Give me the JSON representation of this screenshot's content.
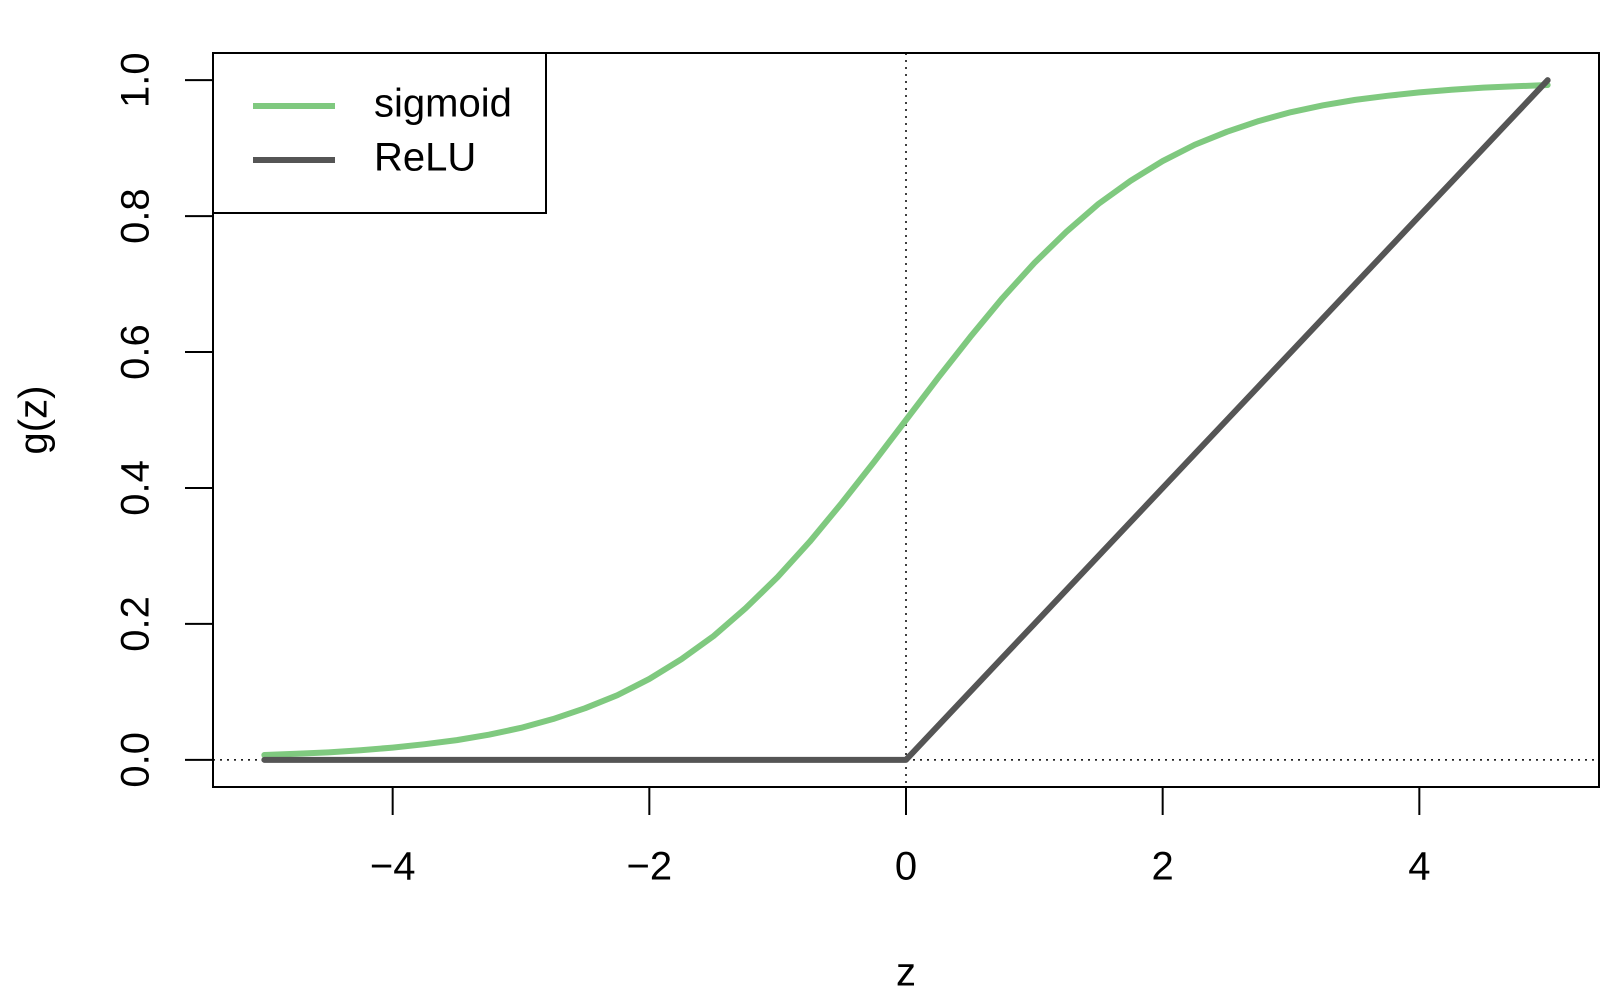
{
  "chart_data": {
    "type": "line",
    "xlabel": "z",
    "ylabel": "g(z)",
    "x": [
      -5,
      -4.75,
      -4.5,
      -4.25,
      -4,
      -3.75,
      -3.5,
      -3.25,
      -3,
      -2.75,
      -2.5,
      -2.25,
      -2,
      -1.75,
      -1.5,
      -1.25,
      -1,
      -0.75,
      -0.5,
      -0.25,
      0,
      0.25,
      0.5,
      0.75,
      1,
      1.25,
      1.5,
      1.75,
      2,
      2.25,
      2.5,
      2.75,
      3,
      3.25,
      3.5,
      3.75,
      4,
      4.25,
      4.5,
      4.75,
      5
    ],
    "series": [
      {
        "name": "sigmoid",
        "color": "#7fc97f",
        "values": [
          0.007,
          0.009,
          0.011,
          0.014,
          0.018,
          0.023,
          0.029,
          0.037,
          0.047,
          0.06,
          0.076,
          0.095,
          0.119,
          0.148,
          0.182,
          0.223,
          0.269,
          0.321,
          0.378,
          0.438,
          0.5,
          0.562,
          0.622,
          0.679,
          0.731,
          0.777,
          0.818,
          0.852,
          0.881,
          0.905,
          0.924,
          0.94,
          0.953,
          0.963,
          0.971,
          0.977,
          0.982,
          0.986,
          0.989,
          0.991,
          0.993
        ]
      },
      {
        "name": "ReLU",
        "color": "#555555",
        "values": [
          0,
          0,
          0,
          0,
          0,
          0,
          0,
          0,
          0,
          0,
          0,
          0,
          0,
          0,
          0,
          0,
          0,
          0,
          0,
          0,
          0,
          0.05,
          0.1,
          0.15,
          0.2,
          0.25,
          0.3,
          0.35,
          0.4,
          0.45,
          0.5,
          0.55,
          0.6,
          0.65,
          0.7,
          0.75,
          0.8,
          0.85,
          0.9,
          0.95,
          1.0
        ]
      }
    ],
    "xlim": [
      -5.4,
      5.4
    ],
    "ylim": [
      -0.04,
      1.04
    ],
    "xticks": [
      {
        "value": -4,
        "label": "−4"
      },
      {
        "value": -2,
        "label": "−2"
      },
      0,
      2,
      4
    ],
    "yticks": [
      {
        "value": 0,
        "label": "0.0"
      },
      0.2,
      0.4,
      0.6,
      0.8,
      {
        "value": 1,
        "label": "1.0"
      }
    ],
    "reference_lines": {
      "x": [
        0
      ],
      "y": [
        0
      ]
    },
    "legend": "topleft"
  }
}
